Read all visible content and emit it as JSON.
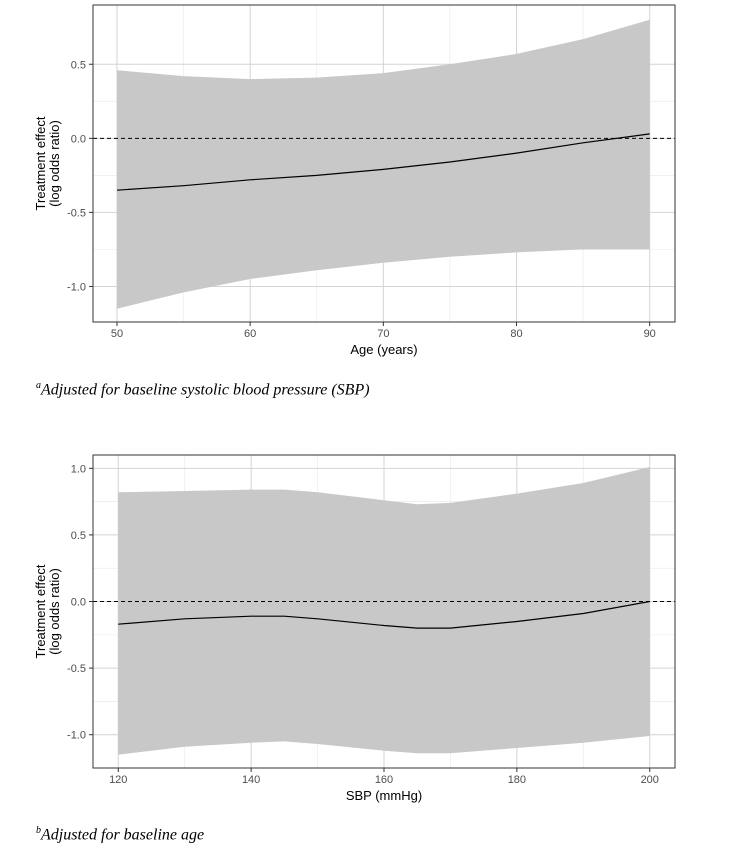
{
  "colors": {
    "band": "#c8c8c8",
    "line": "#000000",
    "grid_major": "#d4d4d4",
    "grid_minor": "#ececec",
    "panel_border": "#333333"
  },
  "chart_data": [
    {
      "type": "line",
      "xlabel": "Age (years)",
      "ylabel": [
        "Treatment effect",
        "(log odds ratio)"
      ],
      "xlim": [
        48.2,
        91.9
      ],
      "ylim": [
        -1.24,
        0.9
      ],
      "xticks": [
        50,
        60,
        70,
        80,
        90
      ],
      "xtick_labels": [
        "50",
        "60",
        "70",
        "80",
        "90"
      ],
      "yticks": [
        0.5,
        0.0,
        -0.5,
        -1.0
      ],
      "ytick_labels": [
        "0.5",
        "0.0",
        "-0.5",
        "-1.0"
      ],
      "reference_line": 0.0,
      "grid": true,
      "series": [
        {
          "x": [
            50,
            55,
            60,
            65,
            70,
            75,
            80,
            85,
            90
          ],
          "estimate": [
            -0.35,
            -0.32,
            -0.28,
            -0.25,
            -0.21,
            -0.16,
            -0.1,
            -0.03,
            0.03
          ],
          "lower": [
            -1.15,
            -1.04,
            -0.95,
            -0.89,
            -0.84,
            -0.8,
            -0.77,
            -0.75,
            -0.75
          ],
          "upper": [
            0.46,
            0.42,
            0.4,
            0.41,
            0.44,
            0.5,
            0.57,
            0.67,
            0.8
          ]
        }
      ],
      "caption_marker": "a",
      "caption": "Adjusted for baseline systolic blood pressure (SBP)"
    },
    {
      "type": "line",
      "xlabel": "SBP (mmHg)",
      "ylabel": [
        "Treatment effect",
        "(log odds ratio)"
      ],
      "xlim": [
        116.2,
        203.8
      ],
      "ylim": [
        -1.25,
        1.1
      ],
      "xticks": [
        120,
        140,
        160,
        180,
        200
      ],
      "xtick_labels": [
        "120",
        "140",
        "160",
        "180",
        "200"
      ],
      "yticks": [
        1.0,
        0.5,
        0.0,
        -0.5,
        -1.0
      ],
      "ytick_labels": [
        "1.0",
        "0.5",
        "0.0",
        "-0.5",
        "-1.0"
      ],
      "reference_line": 0.0,
      "grid": true,
      "series": [
        {
          "x": [
            120,
            130,
            140,
            145,
            150,
            160,
            165,
            170,
            180,
            190,
            200
          ],
          "estimate": [
            -0.17,
            -0.13,
            -0.11,
            -0.11,
            -0.13,
            -0.18,
            -0.2,
            -0.2,
            -0.15,
            -0.09,
            0.0
          ],
          "lower": [
            -1.15,
            -1.09,
            -1.06,
            -1.05,
            -1.07,
            -1.12,
            -1.14,
            -1.14,
            -1.1,
            -1.06,
            -1.01
          ],
          "upper": [
            0.82,
            0.83,
            0.84,
            0.84,
            0.82,
            0.76,
            0.73,
            0.74,
            0.81,
            0.89,
            1.01
          ]
        }
      ],
      "caption_marker": "b",
      "caption": "Adjusted for baseline age"
    }
  ]
}
